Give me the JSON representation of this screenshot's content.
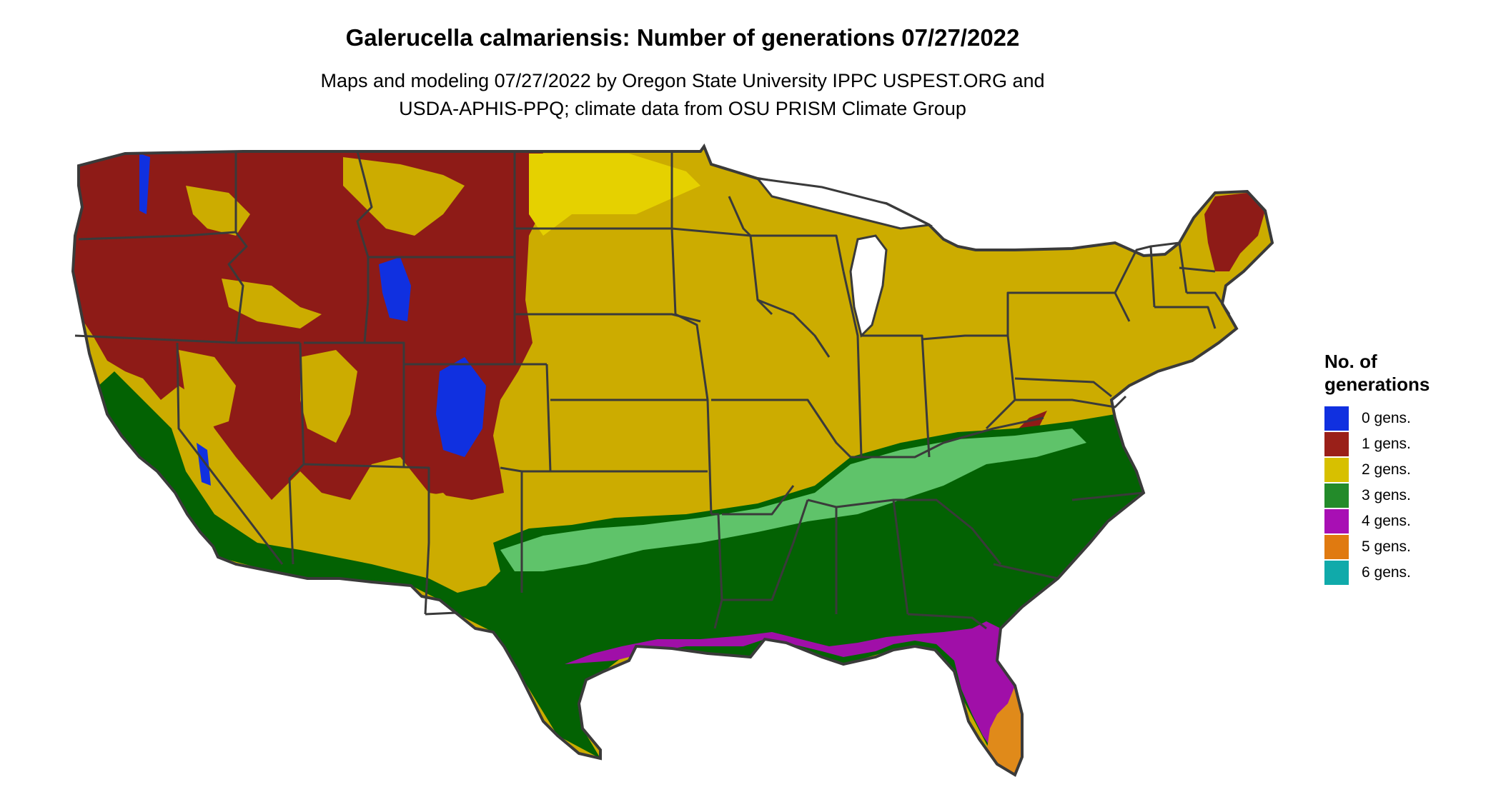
{
  "title": "Galerucella calmariensis: Number of generations 07/27/2022",
  "subtitle_lines": [
    "Maps and modeling 07/27/2022 by Oregon State University IPPC USPEST.ORG and",
    "USDA-APHIS-PPQ; climate data from OSU PRISM Climate Group"
  ],
  "legend": {
    "title_lines": [
      "No. of",
      "generations"
    ],
    "items": [
      {
        "label": "0 gens.",
        "color": "#1030e0"
      },
      {
        "label": "1 gens.",
        "color": "#9a2019"
      },
      {
        "label": "2 gens.",
        "color": "#d7c000"
      },
      {
        "label": "3 gens.",
        "color": "#238b2a"
      },
      {
        "label": "4 gens.",
        "color": "#a80fb4"
      },
      {
        "label": "5 gens.",
        "color": "#e07a10"
      },
      {
        "label": "6 gens.",
        "color": "#10aaaa"
      }
    ]
  },
  "map_colors": {
    "zero": "#1030e0",
    "one": "#8e1b17",
    "two": "#ccac00",
    "two_light": "#e5d100",
    "three": "#036203",
    "three_light": "#5fc36a",
    "four": "#a00fa8",
    "four_light": "#c23ed0",
    "five": "#e08a1a",
    "border": "#3a3a3a"
  }
}
